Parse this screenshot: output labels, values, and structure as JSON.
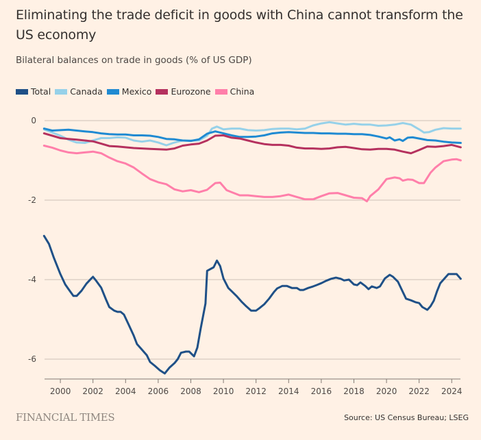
{
  "chart_data": {
    "type": "line",
    "title": "Eliminating the trade deficit in goods with China cannot transform the US economy",
    "subtitle": "Bilateral balances on trade in goods (% of US GDP)",
    "xlabel": "",
    "ylabel": "",
    "xlim": [
      1999.0,
      2024.55
    ],
    "ylim": [
      -6.75,
      0.2
    ],
    "x_ticks": [
      2000,
      2002,
      2004,
      2006,
      2008,
      2010,
      2012,
      2014,
      2016,
      2018,
      2020,
      2022,
      2024
    ],
    "x_tick_labels": [
      "2000",
      "2002",
      "2004",
      "2006",
      "2008",
      "2010",
      "2012",
      "2014",
      "2016",
      "2018",
      "2020",
      "2022",
      "2024"
    ],
    "y_ticks": [
      0,
      -2,
      -4,
      -6
    ],
    "y_tick_labels": [
      "0",
      "-2",
      "-4",
      "-6"
    ],
    "grid": true,
    "legend_position": "top-left",
    "series": [
      {
        "name": "Total",
        "color": "#1f5087",
        "x": [
          1999.0,
          1999.3,
          1999.6,
          2000.0,
          2000.3,
          2000.5,
          2000.8,
          2001.0,
          2001.3,
          2001.6,
          2001.9,
          2002.0,
          2002.2,
          2002.5,
          2002.8,
          2003.0,
          2003.3,
          2003.5,
          2003.7,
          2003.9,
          2004.2,
          2004.5,
          2004.7,
          2005.0,
          2005.3,
          2005.5,
          2005.8,
          2006.1,
          2006.4,
          2006.7,
          2007.0,
          2007.2,
          2007.4,
          2007.7,
          2007.9,
          2008.2,
          2008.4,
          2008.6,
          2008.9,
          2009.0,
          2009.4,
          2009.6,
          2009.8,
          2010.0,
          2010.3,
          2010.5,
          2010.8,
          2011.1,
          2011.4,
          2011.7,
          2012.0,
          2012.2,
          2012.5,
          2012.8,
          2013.1,
          2013.3,
          2013.6,
          2013.9,
          2014.2,
          2014.5,
          2014.7,
          2014.9,
          2015.2,
          2015.5,
          2015.7,
          2016.0,
          2016.3,
          2016.6,
          2016.9,
          2017.2,
          2017.4,
          2017.7,
          2018.0,
          2018.2,
          2018.4,
          2018.7,
          2018.9,
          2019.1,
          2019.4,
          2019.6,
          2019.9,
          2020.2,
          2020.4,
          2020.7,
          2021.0,
          2021.2,
          2021.5,
          2021.8,
          2022.0,
          2022.2,
          2022.5,
          2022.7,
          2022.9,
          2023.1,
          2023.3,
          2023.6,
          2023.8,
          2024.1,
          2024.3,
          2024.55
        ],
        "values": [
          -2.9,
          -3.1,
          -3.45,
          -3.86,
          -4.12,
          -4.24,
          -4.41,
          -4.41,
          -4.28,
          -4.1,
          -3.97,
          -3.93,
          -4.03,
          -4.2,
          -4.5,
          -4.69,
          -4.78,
          -4.81,
          -4.81,
          -4.88,
          -5.14,
          -5.41,
          -5.62,
          -5.76,
          -5.9,
          -6.07,
          -6.17,
          -6.28,
          -6.36,
          -6.21,
          -6.1,
          -6.0,
          -5.84,
          -5.81,
          -5.81,
          -5.93,
          -5.71,
          -5.24,
          -4.6,
          -3.78,
          -3.69,
          -3.52,
          -3.66,
          -3.97,
          -4.21,
          -4.29,
          -4.41,
          -4.55,
          -4.67,
          -4.78,
          -4.78,
          -4.72,
          -4.62,
          -4.48,
          -4.31,
          -4.22,
          -4.16,
          -4.16,
          -4.21,
          -4.21,
          -4.26,
          -4.26,
          -4.21,
          -4.17,
          -4.14,
          -4.09,
          -4.03,
          -3.98,
          -3.95,
          -3.98,
          -4.02,
          -4.0,
          -4.12,
          -4.14,
          -4.07,
          -4.16,
          -4.24,
          -4.17,
          -4.21,
          -4.17,
          -3.97,
          -3.88,
          -3.93,
          -4.05,
          -4.31,
          -4.48,
          -4.52,
          -4.57,
          -4.59,
          -4.69,
          -4.76,
          -4.67,
          -4.53,
          -4.29,
          -4.09,
          -3.95,
          -3.86,
          -3.86,
          -3.86,
          -3.98
        ]
      },
      {
        "name": "Canada",
        "color": "#96d1e9",
        "x": [
          1999.0,
          1999.5,
          2000.0,
          2000.5,
          2001.0,
          2001.5,
          2002.0,
          2002.5,
          2003.0,
          2003.5,
          2004.0,
          2004.5,
          2005.0,
          2005.5,
          2006.0,
          2006.5,
          2007.0,
          2007.5,
          2008.0,
          2008.5,
          2009.0,
          2009.3,
          2009.6,
          2010.0,
          2010.5,
          2011.0,
          2011.5,
          2012.0,
          2012.5,
          2013.0,
          2013.5,
          2014.0,
          2014.5,
          2015.0,
          2015.5,
          2016.0,
          2016.5,
          2017.0,
          2017.5,
          2018.0,
          2018.5,
          2019.0,
          2019.5,
          2020.0,
          2020.5,
          2021.0,
          2021.5,
          2022.0,
          2022.3,
          2022.6,
          2023.0,
          2023.5,
          2024.0,
          2024.55
        ],
        "values": [
          -0.22,
          -0.3,
          -0.38,
          -0.48,
          -0.55,
          -0.56,
          -0.5,
          -0.44,
          -0.44,
          -0.42,
          -0.43,
          -0.5,
          -0.53,
          -0.5,
          -0.55,
          -0.62,
          -0.55,
          -0.5,
          -0.5,
          -0.5,
          -0.38,
          -0.2,
          -0.15,
          -0.22,
          -0.2,
          -0.2,
          -0.24,
          -0.25,
          -0.24,
          -0.21,
          -0.2,
          -0.2,
          -0.22,
          -0.2,
          -0.12,
          -0.07,
          -0.04,
          -0.07,
          -0.1,
          -0.08,
          -0.1,
          -0.1,
          -0.13,
          -0.12,
          -0.1,
          -0.06,
          -0.1,
          -0.22,
          -0.3,
          -0.29,
          -0.23,
          -0.19,
          -0.2,
          -0.2
        ]
      },
      {
        "name": "Mexico",
        "color": "#1f8ad2",
        "x": [
          1999.0,
          1999.5,
          2000.0,
          2000.5,
          2001.0,
          2001.5,
          2002.0,
          2002.5,
          2003.0,
          2003.5,
          2004.0,
          2004.5,
          2005.0,
          2005.5,
          2006.0,
          2006.5,
          2007.0,
          2007.5,
          2008.0,
          2008.5,
          2009.0,
          2009.5,
          2010.0,
          2010.5,
          2011.0,
          2011.5,
          2012.0,
          2012.5,
          2013.0,
          2013.5,
          2014.0,
          2014.5,
          2015.0,
          2015.5,
          2016.0,
          2016.5,
          2017.0,
          2017.5,
          2018.0,
          2018.5,
          2019.0,
          2019.5,
          2020.0,
          2020.2,
          2020.5,
          2020.8,
          2021.0,
          2021.3,
          2021.6,
          2022.0,
          2022.5,
          2023.0,
          2023.5,
          2024.0,
          2024.55
        ],
        "values": [
          -0.2,
          -0.25,
          -0.24,
          -0.23,
          -0.25,
          -0.27,
          -0.29,
          -0.32,
          -0.34,
          -0.35,
          -0.35,
          -0.37,
          -0.37,
          -0.38,
          -0.41,
          -0.46,
          -0.47,
          -0.5,
          -0.51,
          -0.47,
          -0.33,
          -0.27,
          -0.32,
          -0.37,
          -0.41,
          -0.41,
          -0.4,
          -0.37,
          -0.32,
          -0.3,
          -0.29,
          -0.3,
          -0.31,
          -0.31,
          -0.32,
          -0.32,
          -0.33,
          -0.33,
          -0.34,
          -0.34,
          -0.36,
          -0.4,
          -0.45,
          -0.42,
          -0.5,
          -0.47,
          -0.51,
          -0.43,
          -0.42,
          -0.45,
          -0.49,
          -0.5,
          -0.53,
          -0.55,
          -0.56
        ]
      },
      {
        "name": "Eurozone",
        "color": "#b5315e",
        "x": [
          1999.0,
          1999.5,
          2000.0,
          2000.5,
          2001.0,
          2001.5,
          2002.0,
          2002.5,
          2003.0,
          2003.5,
          2004.0,
          2004.5,
          2005.0,
          2005.5,
          2006.0,
          2006.5,
          2007.0,
          2007.5,
          2008.0,
          2008.5,
          2009.0,
          2009.5,
          2010.0,
          2010.5,
          2011.0,
          2011.5,
          2012.0,
          2012.5,
          2013.0,
          2013.5,
          2014.0,
          2014.5,
          2015.0,
          2015.5,
          2016.0,
          2016.5,
          2017.0,
          2017.5,
          2018.0,
          2018.5,
          2019.0,
          2019.5,
          2020.0,
          2020.5,
          2021.0,
          2021.5,
          2022.0,
          2022.5,
          2023.0,
          2023.5,
          2024.0,
          2024.55
        ],
        "values": [
          -0.32,
          -0.38,
          -0.44,
          -0.46,
          -0.48,
          -0.5,
          -0.52,
          -0.58,
          -0.64,
          -0.65,
          -0.67,
          -0.69,
          -0.7,
          -0.71,
          -0.72,
          -0.73,
          -0.7,
          -0.63,
          -0.6,
          -0.58,
          -0.5,
          -0.38,
          -0.37,
          -0.43,
          -0.45,
          -0.5,
          -0.55,
          -0.59,
          -0.61,
          -0.61,
          -0.63,
          -0.68,
          -0.7,
          -0.7,
          -0.71,
          -0.7,
          -0.67,
          -0.66,
          -0.69,
          -0.72,
          -0.73,
          -0.71,
          -0.71,
          -0.73,
          -0.78,
          -0.82,
          -0.74,
          -0.65,
          -0.66,
          -0.64,
          -0.61,
          -0.67
        ]
      },
      {
        "name": "China",
        "color": "#ff7faa",
        "x": [
          1999.0,
          1999.5,
          2000.0,
          2000.5,
          2001.0,
          2001.5,
          2002.0,
          2002.5,
          2003.0,
          2003.5,
          2004.0,
          2004.5,
          2005.0,
          2005.5,
          2006.0,
          2006.5,
          2007.0,
          2007.5,
          2008.0,
          2008.5,
          2009.0,
          2009.5,
          2009.8,
          2010.2,
          2010.5,
          2011.0,
          2011.5,
          2012.0,
          2012.5,
          2013.0,
          2013.5,
          2014.0,
          2014.5,
          2015.0,
          2015.5,
          2016.0,
          2016.5,
          2017.0,
          2017.5,
          2018.0,
          2018.5,
          2018.8,
          2019.0,
          2019.5,
          2020.0,
          2020.5,
          2020.8,
          2021.0,
          2021.3,
          2021.6,
          2022.0,
          2022.3,
          2022.7,
          2023.0,
          2023.5,
          2024.0,
          2024.3,
          2024.55
        ],
        "values": [
          -0.63,
          -0.68,
          -0.75,
          -0.8,
          -0.82,
          -0.8,
          -0.78,
          -0.82,
          -0.93,
          -1.02,
          -1.08,
          -1.18,
          -1.33,
          -1.47,
          -1.55,
          -1.6,
          -1.73,
          -1.78,
          -1.75,
          -1.8,
          -1.74,
          -1.57,
          -1.56,
          -1.75,
          -1.8,
          -1.88,
          -1.88,
          -1.9,
          -1.92,
          -1.92,
          -1.9,
          -1.86,
          -1.92,
          -1.98,
          -1.98,
          -1.9,
          -1.83,
          -1.82,
          -1.88,
          -1.94,
          -1.95,
          -2.03,
          -1.9,
          -1.73,
          -1.47,
          -1.43,
          -1.45,
          -1.51,
          -1.48,
          -1.49,
          -1.57,
          -1.57,
          -1.31,
          -1.18,
          -1.02,
          -0.98,
          -0.97,
          -1.0
        ]
      }
    ]
  },
  "header": {
    "title": "Eliminating the trade deficit in goods with China cannot transform the US economy",
    "subtitle": "Bilateral balances on trade in goods (% of US GDP)"
  },
  "legend": [
    {
      "label": "Total",
      "color": "#1f5087"
    },
    {
      "label": "Canada",
      "color": "#96d1e9"
    },
    {
      "label": "Mexico",
      "color": "#1f8ad2"
    },
    {
      "label": "Eurozone",
      "color": "#b5315e"
    },
    {
      "label": "China",
      "color": "#ff7faa"
    }
  ],
  "footer": {
    "brand": "FINANCIAL TIMES",
    "source": "Source: US Census Bureau; LSEG"
  },
  "colors": {
    "background": "#fff1e5",
    "grid": "#ccc1b7",
    "axis": "#807973"
  }
}
